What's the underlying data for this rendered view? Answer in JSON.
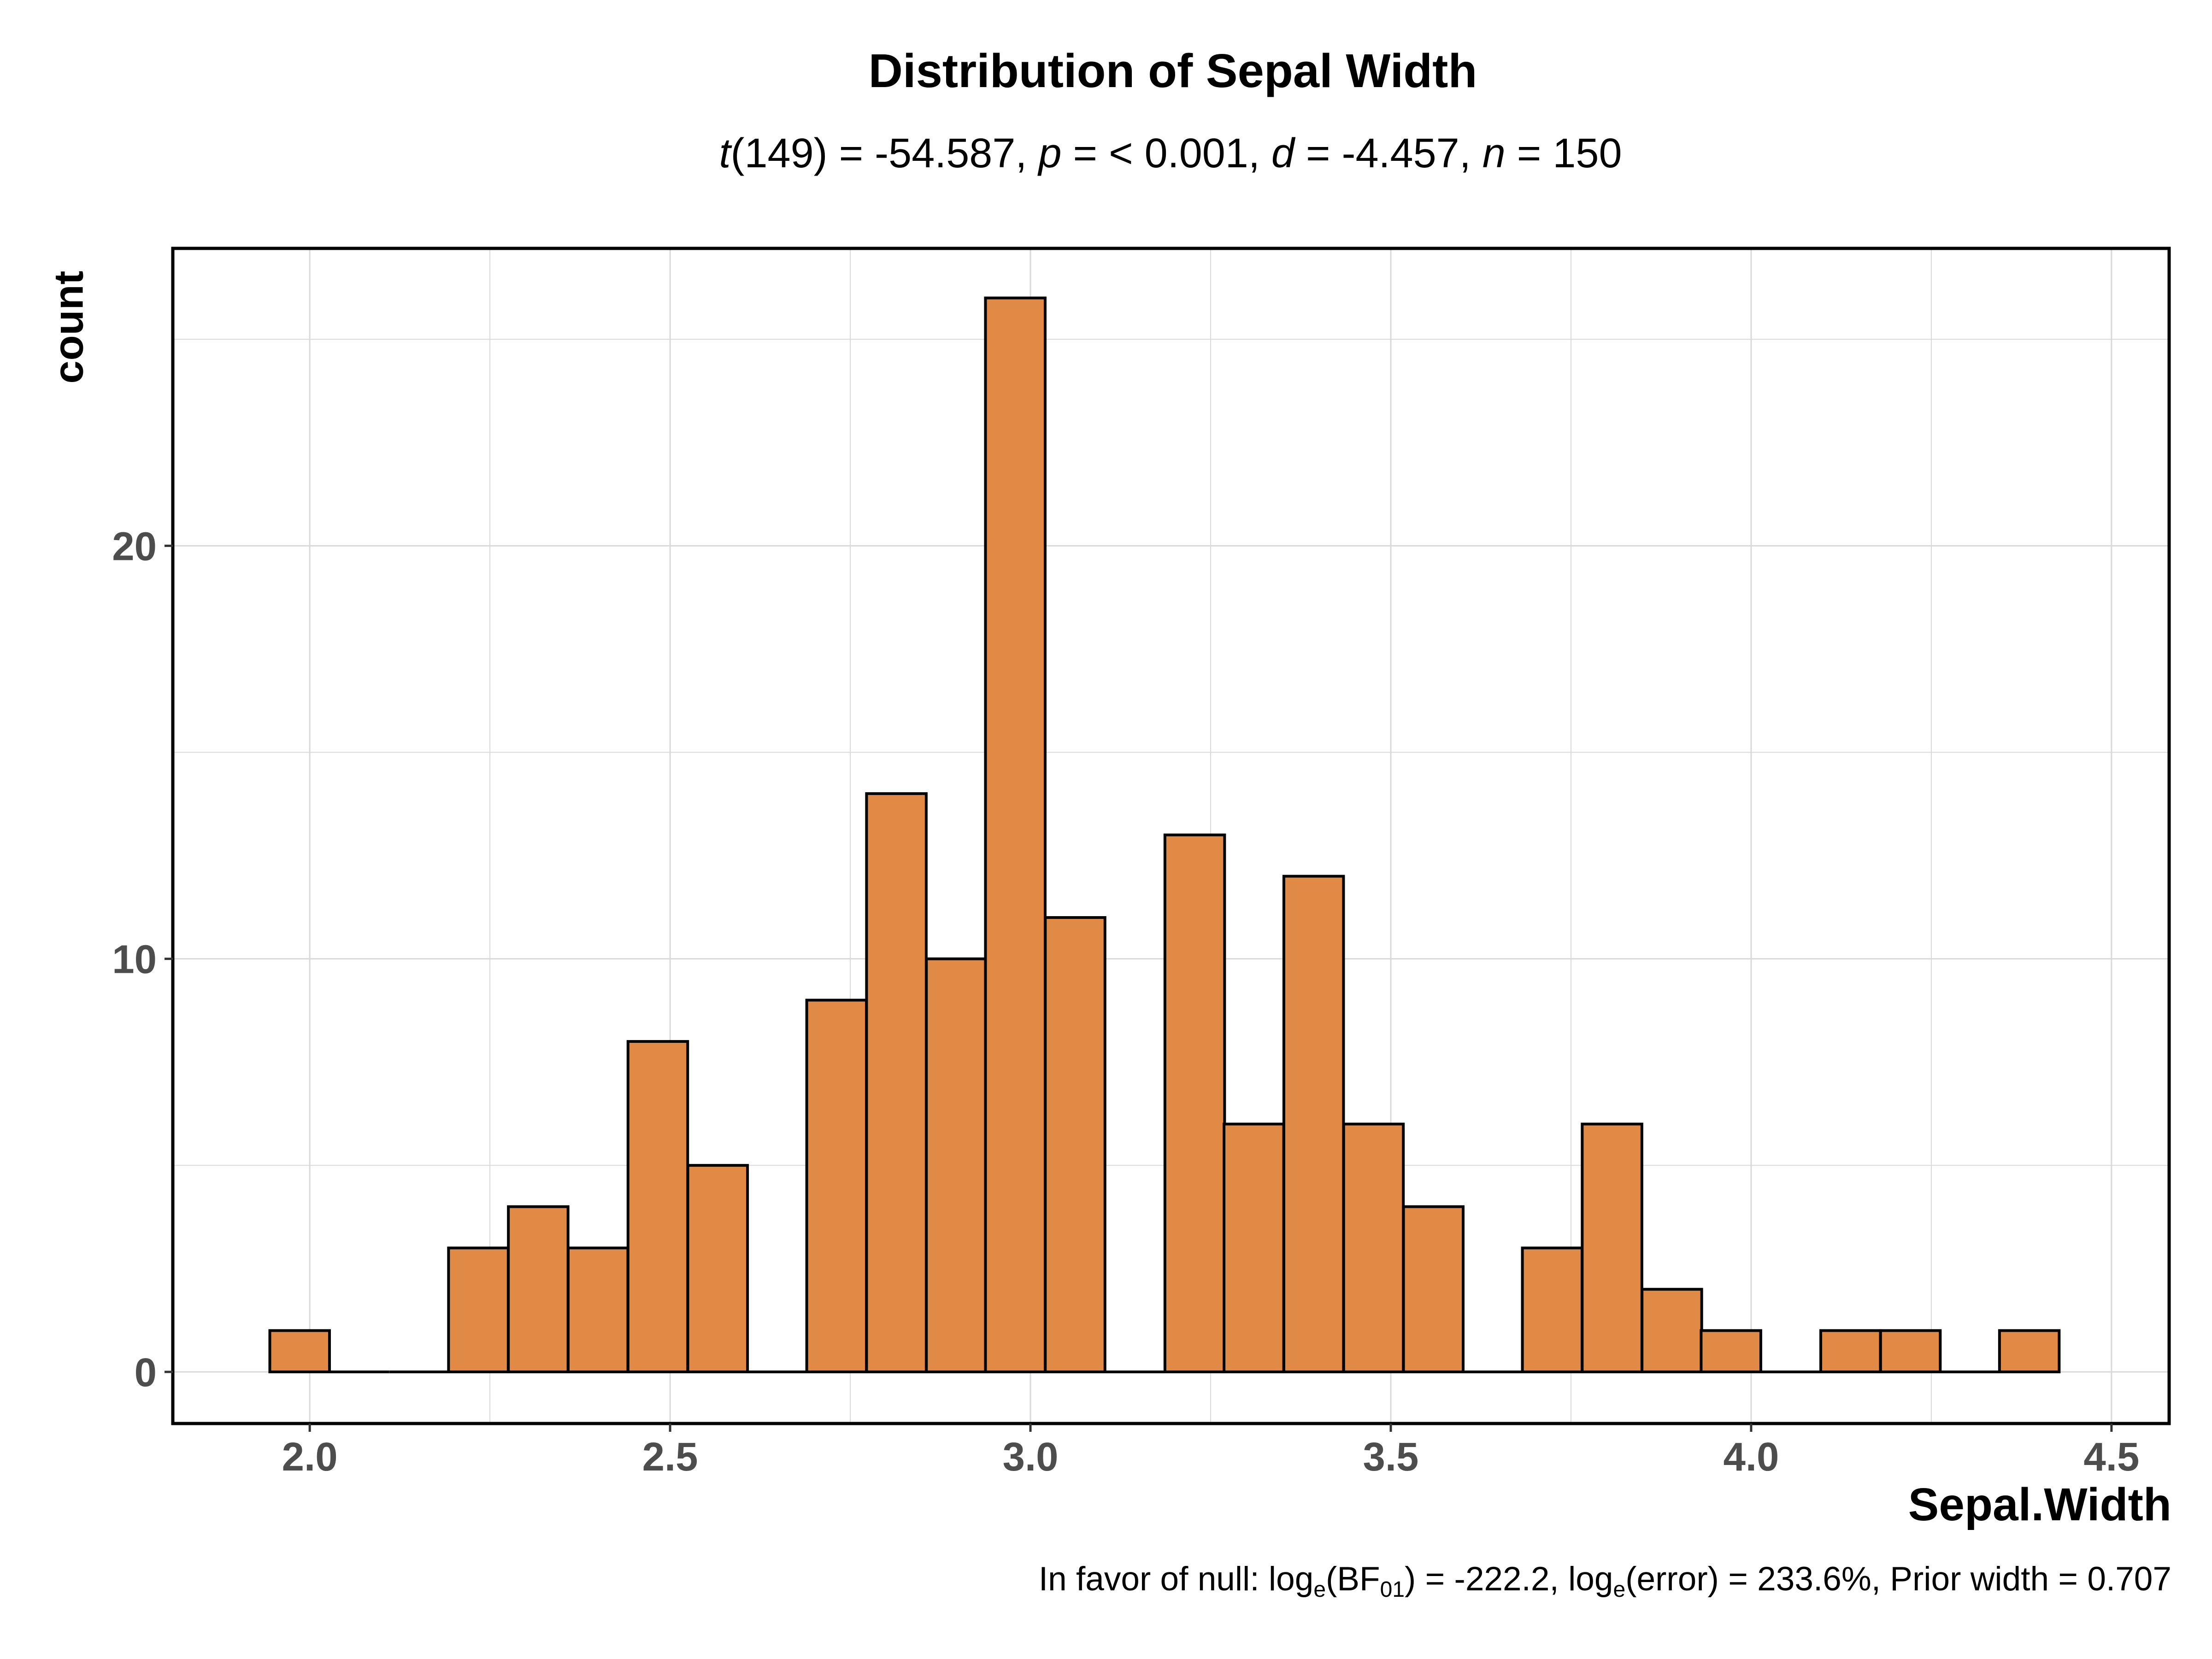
{
  "chart_data": {
    "type": "bar",
    "title": "Distribution of Sepal Width",
    "subtitle": {
      "t_symbol": "t",
      "t_rest": "(149) = -54.587, ",
      "p_symbol": "p",
      "p_rest": " = < 0.001, ",
      "d_symbol": "d",
      "d_rest": " = -4.457, ",
      "n_symbol": "n",
      "n_rest": " = 150"
    },
    "xlabel": "Sepal.Width",
    "ylabel": "count",
    "caption": {
      "part1": "In favor of null: log",
      "sub1": "e",
      "part2": "(BF",
      "sub2": "01",
      "part3": ") = -222.2, log",
      "sub3": "e",
      "part4": "(error) = 233.6%, Prior width = 0.707"
    },
    "xlim": [
      1.81,
      4.58
    ],
    "ylim": [
      -1.25,
      27.2
    ],
    "x_ticks": [
      2.0,
      2.5,
      3.0,
      3.5,
      4.0,
      4.5
    ],
    "x_tick_labels": [
      "2.0",
      "2.5",
      "3.0",
      "3.5",
      "4.0",
      "4.5"
    ],
    "y_ticks": [
      0,
      10,
      20
    ],
    "y_tick_labels": [
      "0",
      "10",
      "20"
    ],
    "y_minor_ticks": [
      5,
      15,
      25
    ],
    "bin_width": 0.0828,
    "bins": [
      {
        "x": 1.986,
        "count": 1
      },
      {
        "x": 2.069,
        "count": 0
      },
      {
        "x": 2.152,
        "count": 0
      },
      {
        "x": 2.234,
        "count": 3
      },
      {
        "x": 2.317,
        "count": 4
      },
      {
        "x": 2.4,
        "count": 3
      },
      {
        "x": 2.483,
        "count": 8
      },
      {
        "x": 2.566,
        "count": 5
      },
      {
        "x": 2.648,
        "count": 0
      },
      {
        "x": 2.731,
        "count": 9
      },
      {
        "x": 2.814,
        "count": 14
      },
      {
        "x": 2.897,
        "count": 10
      },
      {
        "x": 2.979,
        "count": 26
      },
      {
        "x": 3.062,
        "count": 11
      },
      {
        "x": 3.145,
        "count": 0
      },
      {
        "x": 3.228,
        "count": 13
      },
      {
        "x": 3.31,
        "count": 6
      },
      {
        "x": 3.393,
        "count": 12
      },
      {
        "x": 3.476,
        "count": 6
      },
      {
        "x": 3.559,
        "count": 4
      },
      {
        "x": 3.641,
        "count": 0
      },
      {
        "x": 3.724,
        "count": 3
      },
      {
        "x": 3.807,
        "count": 6
      },
      {
        "x": 3.89,
        "count": 2
      },
      {
        "x": 3.972,
        "count": 1
      },
      {
        "x": 4.055,
        "count": 0
      },
      {
        "x": 4.138,
        "count": 1
      },
      {
        "x": 4.221,
        "count": 1
      },
      {
        "x": 4.303,
        "count": 0
      },
      {
        "x": 4.386,
        "count": 1
      }
    ],
    "grid": true,
    "bar_fill": "#e08a45",
    "bar_stroke": "#000000",
    "grid_color": "#d9d9d9"
  }
}
